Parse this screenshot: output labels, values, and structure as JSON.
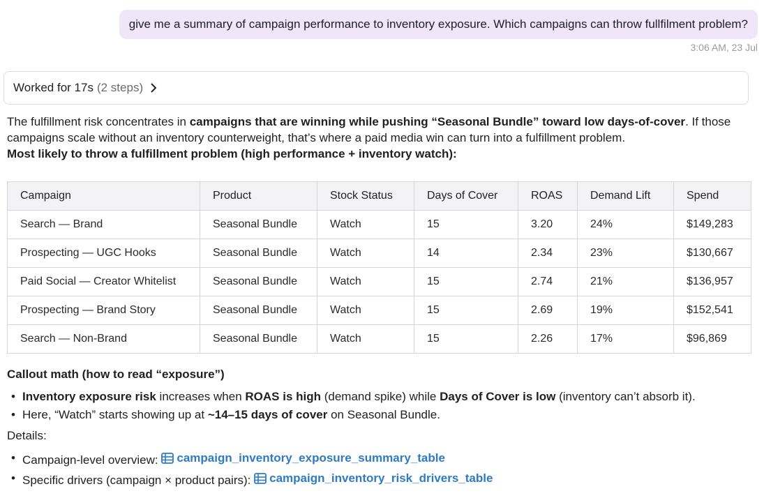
{
  "user_message": {
    "text": "give me a summary of campaign performance to inventory exposure. Which campaigns can throw fullfilment problem?",
    "timestamp": "3:06 AM, 23 Jul"
  },
  "worked": {
    "label": "Worked for 17s",
    "steps": "(2 steps)",
    "icon": "chevron-right-icon"
  },
  "answer": {
    "p1_a": "The fulfillment risk concentrates in ",
    "p1_b": "campaigns that are winning while pushing “Seasonal Bundle” toward low days-of-cover",
    "p1_c": ". If those campaigns scale without an inventory counterweight, that’s where a paid media win can turn into a fulfillment problem.",
    "heading": "Most likely to throw a fulfillment problem (high performance + inventory watch):"
  },
  "table": {
    "columns": [
      "Campaign",
      "Product",
      "Stock Status",
      "Days of Cover",
      "ROAS",
      "Demand Lift",
      "Spend"
    ],
    "rows": [
      [
        "Search — Brand",
        "Seasonal Bundle",
        "Watch",
        "15",
        "3.20",
        "24%",
        "$149,283"
      ],
      [
        "Prospecting — UGC Hooks",
        "Seasonal Bundle",
        "Watch",
        "14",
        "2.34",
        "23%",
        "$130,667"
      ],
      [
        "Paid Social — Creator Whitelist",
        "Seasonal Bundle",
        "Watch",
        "15",
        "2.74",
        "21%",
        "$136,957"
      ],
      [
        "Prospecting — Brand Story",
        "Seasonal Bundle",
        "Watch",
        "15",
        "2.69",
        "19%",
        "$152,541"
      ],
      [
        "Search — Non-Brand",
        "Seasonal Bundle",
        "Watch",
        "15",
        "2.26",
        "17%",
        "$96,869"
      ]
    ]
  },
  "callout": {
    "title": "Callout math (how to read “exposure”)",
    "b1_a": "Inventory exposure risk",
    "b1_b": " increases when ",
    "b1_c": "ROAS is high",
    "b1_d": " (demand spike) while ",
    "b1_e": "Days of Cover is low",
    "b1_f": " (inventory can’t absorb it).",
    "b2_a": "Here, “Watch” starts showing up at ",
    "b2_b": "~14–15 days of cover",
    "b2_c": " on Seasonal Bundle.",
    "details_label": "Details:",
    "d1_label": "Campaign-level overview: ",
    "d1_link": "campaign_inventory_exposure_summary_table",
    "d2_label": "Specific drivers (campaign × product pairs): ",
    "d2_link": "campaign_inventory_risk_drivers_table",
    "link_icon": "table-icon",
    "link_color": "#2e7bc4"
  }
}
